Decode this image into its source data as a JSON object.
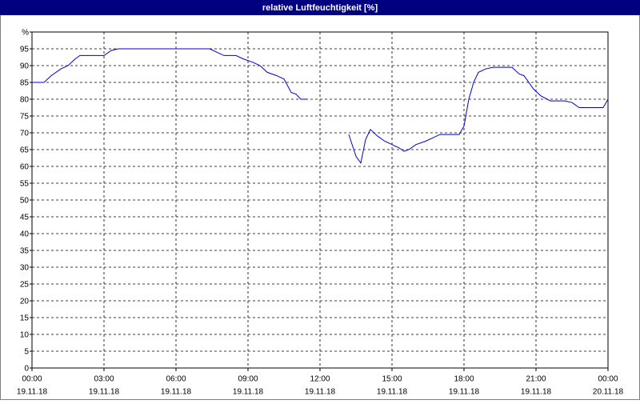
{
  "chart_data": {
    "type": "line",
    "title": "relative Luftfeuchtigkeit [%]",
    "x": [
      0,
      0.5,
      0.8,
      1.2,
      1.5,
      1.8,
      2.0,
      2.5,
      3.0,
      3.3,
      3.6,
      7.4,
      8.0,
      8.5,
      8.8,
      9.2,
      9.5,
      9.8,
      10.2,
      10.5,
      10.8,
      11.0,
      11.2,
      11.5,
      12.3,
      13.2,
      13.5,
      13.7,
      13.9,
      14.1,
      14.4,
      14.7,
      15.0,
      15.3,
      15.5,
      15.7,
      16.0,
      16.4,
      16.7,
      17.0,
      17.8,
      18.0,
      18.2,
      18.4,
      18.6,
      18.9,
      19.2,
      20.0,
      20.3,
      20.5,
      20.9,
      21.2,
      21.6,
      22.2,
      22.5,
      22.8,
      23.8,
      24.0
    ],
    "series": [
      {
        "color": "#0000cc",
        "values": [
          85,
          85,
          87,
          89,
          90,
          92,
          93,
          93,
          93,
          94.5,
          95,
          95,
          93,
          93,
          92,
          91,
          90,
          88,
          87,
          86,
          82,
          81.5,
          80,
          80,
          null,
          69.5,
          63,
          61,
          68,
          71,
          69,
          67.5,
          66.5,
          65.5,
          64.5,
          65,
          66.5,
          67.5,
          68.5,
          69.5,
          69.5,
          72,
          80,
          85,
          88,
          89,
          89.5,
          89.5,
          87.5,
          87,
          83,
          81,
          79.5,
          79.5,
          79,
          77.5,
          77.5,
          80
        ]
      }
    ],
    "xlim": [
      0,
      24
    ],
    "xticks": [
      {
        "value": 0,
        "label": "00:00"
      },
      {
        "value": 3,
        "label": "03:00"
      },
      {
        "value": 6,
        "label": "06:00"
      },
      {
        "value": 9,
        "label": "09:00"
      },
      {
        "value": 12,
        "label": "12:00"
      },
      {
        "value": 15,
        "label": "15:00"
      },
      {
        "value": 18,
        "label": "18:00"
      },
      {
        "value": 21,
        "label": "21:00"
      },
      {
        "value": 24,
        "label": "00:00"
      }
    ],
    "xtick_dates": [
      "19.11.18",
      "19.11.18",
      "19.11.18",
      "19.11.18",
      "19.11.18",
      "19.11.18",
      "19.11.18",
      "19.11.18",
      "20.11.18"
    ],
    "ylim": [
      0,
      100
    ],
    "yticks": [
      0,
      5,
      10,
      15,
      20,
      25,
      30,
      35,
      40,
      45,
      50,
      55,
      60,
      65,
      70,
      75,
      80,
      85,
      90,
      95,
      {
        "value": 100,
        "label": "%"
      }
    ],
    "grid": true
  }
}
